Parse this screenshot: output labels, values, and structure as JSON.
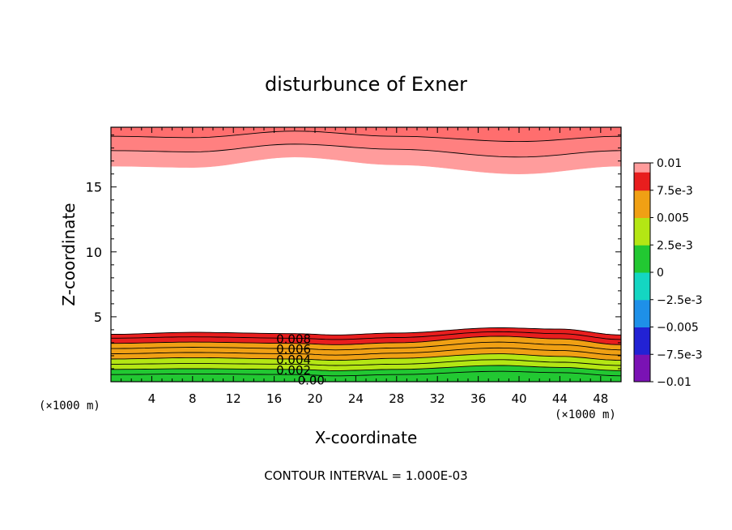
{
  "chart_data": {
    "type": "heatmap",
    "title": "disturbunce of Exner",
    "xlabel": "X-coordinate",
    "ylabel": "Z-coordinate",
    "x_unit_label": "(×1000 m)",
    "y_unit_label": "(×1000 m)",
    "xlim": [
      0,
      50
    ],
    "ylim": [
      0,
      19.6
    ],
    "x_ticks": [
      4,
      8,
      12,
      16,
      20,
      24,
      28,
      32,
      36,
      40,
      44,
      48
    ],
    "y_ticks": [
      5,
      10,
      15
    ],
    "footer": "CONTOUR INTERVAL = 1.000E-03",
    "colorbar": {
      "min": -0.01,
      "max": 0.01,
      "tick_labels": [
        "0.01",
        "7.5e-3",
        "0.005",
        "2.5e-3",
        "0",
        "−2.5e-3",
        "−0.005",
        "−7.5e-3",
        "−0.01"
      ],
      "tick_values": [
        0.01,
        0.0075,
        0.005,
        0.0025,
        0,
        -0.0025,
        -0.005,
        -0.0075,
        -0.01
      ],
      "levels": [
        {
          "from": -0.01,
          "to": -0.0075,
          "color": "#7a12b4"
        },
        {
          "from": -0.0075,
          "to": -0.005,
          "color": "#2222d4"
        },
        {
          "from": -0.005,
          "to": -0.0025,
          "color": "#1e90e8"
        },
        {
          "from": -0.0025,
          "to": 0,
          "color": "#14d6c2"
        },
        {
          "from": 0,
          "to": 0.0025,
          "color": "#22c832"
        },
        {
          "from": 0.0025,
          "to": 0.005,
          "color": "#b4e614"
        },
        {
          "from": 0.005,
          "to": 0.0075,
          "color": "#f0a014"
        },
        {
          "from": 0.0075,
          "to": 0.01,
          "color": "#e81e1e"
        },
        {
          "from": 0.01,
          "to": 0.0125,
          "color": "#ff9c9c"
        }
      ]
    },
    "bottom_bands": {
      "x": [
        0,
        8,
        18,
        22,
        28,
        38,
        44,
        50
      ],
      "boundaries_z": [
        [
          0.15,
          0.15,
          0.15,
          0.15,
          0.15,
          0.15,
          0.15,
          0.15
        ],
        [
          0.55,
          0.6,
          0.55,
          0.45,
          0.55,
          0.8,
          0.7,
          0.45
        ],
        [
          0.95,
          1.0,
          0.95,
          0.85,
          0.95,
          1.25,
          1.1,
          0.85
        ],
        [
          1.35,
          1.4,
          1.35,
          1.25,
          1.35,
          1.7,
          1.5,
          1.25
        ],
        [
          1.75,
          1.85,
          1.75,
          1.65,
          1.8,
          2.15,
          1.95,
          1.65
        ],
        [
          2.15,
          2.25,
          2.15,
          2.05,
          2.2,
          2.6,
          2.4,
          2.05
        ],
        [
          2.55,
          2.65,
          2.55,
          2.45,
          2.6,
          3.05,
          2.85,
          2.45
        ],
        [
          2.95,
          3.05,
          2.95,
          2.85,
          3.0,
          3.5,
          3.3,
          2.85
        ],
        [
          3.35,
          3.45,
          3.35,
          3.25,
          3.4,
          3.85,
          3.7,
          3.25
        ],
        [
          3.65,
          3.8,
          3.7,
          3.6,
          3.75,
          4.15,
          4.05,
          3.6
        ]
      ],
      "band_values": [
        0.0,
        0.001,
        0.002,
        0.003,
        0.004,
        0.005,
        0.006,
        0.007,
        0.008,
        0.009,
        0.01
      ]
    },
    "top_bands": {
      "x": [
        0,
        8,
        18,
        28,
        40,
        50
      ],
      "boundaries_z": [
        [
          16.6,
          16.5,
          17.3,
          16.7,
          16.0,
          16.6
        ],
        [
          17.8,
          17.7,
          18.3,
          17.9,
          17.3,
          17.8
        ],
        [
          18.9,
          18.8,
          19.3,
          18.9,
          18.5,
          18.9
        ]
      ],
      "band_colors": [
        "#ff9c9c",
        "#ff8080",
        "#ff6e6e",
        "#f25454"
      ]
    },
    "contour_labels": [
      {
        "text": "0.008",
        "x": 16.2,
        "z": 3.35
      },
      {
        "text": "0.006",
        "x": 16.2,
        "z": 2.55
      },
      {
        "text": "0.004",
        "x": 16.2,
        "z": 1.75
      },
      {
        "text": "0.002",
        "x": 16.2,
        "z": 0.95
      },
      {
        "text": "0.00",
        "x": 18.3,
        "z": 0.15
      }
    ]
  }
}
